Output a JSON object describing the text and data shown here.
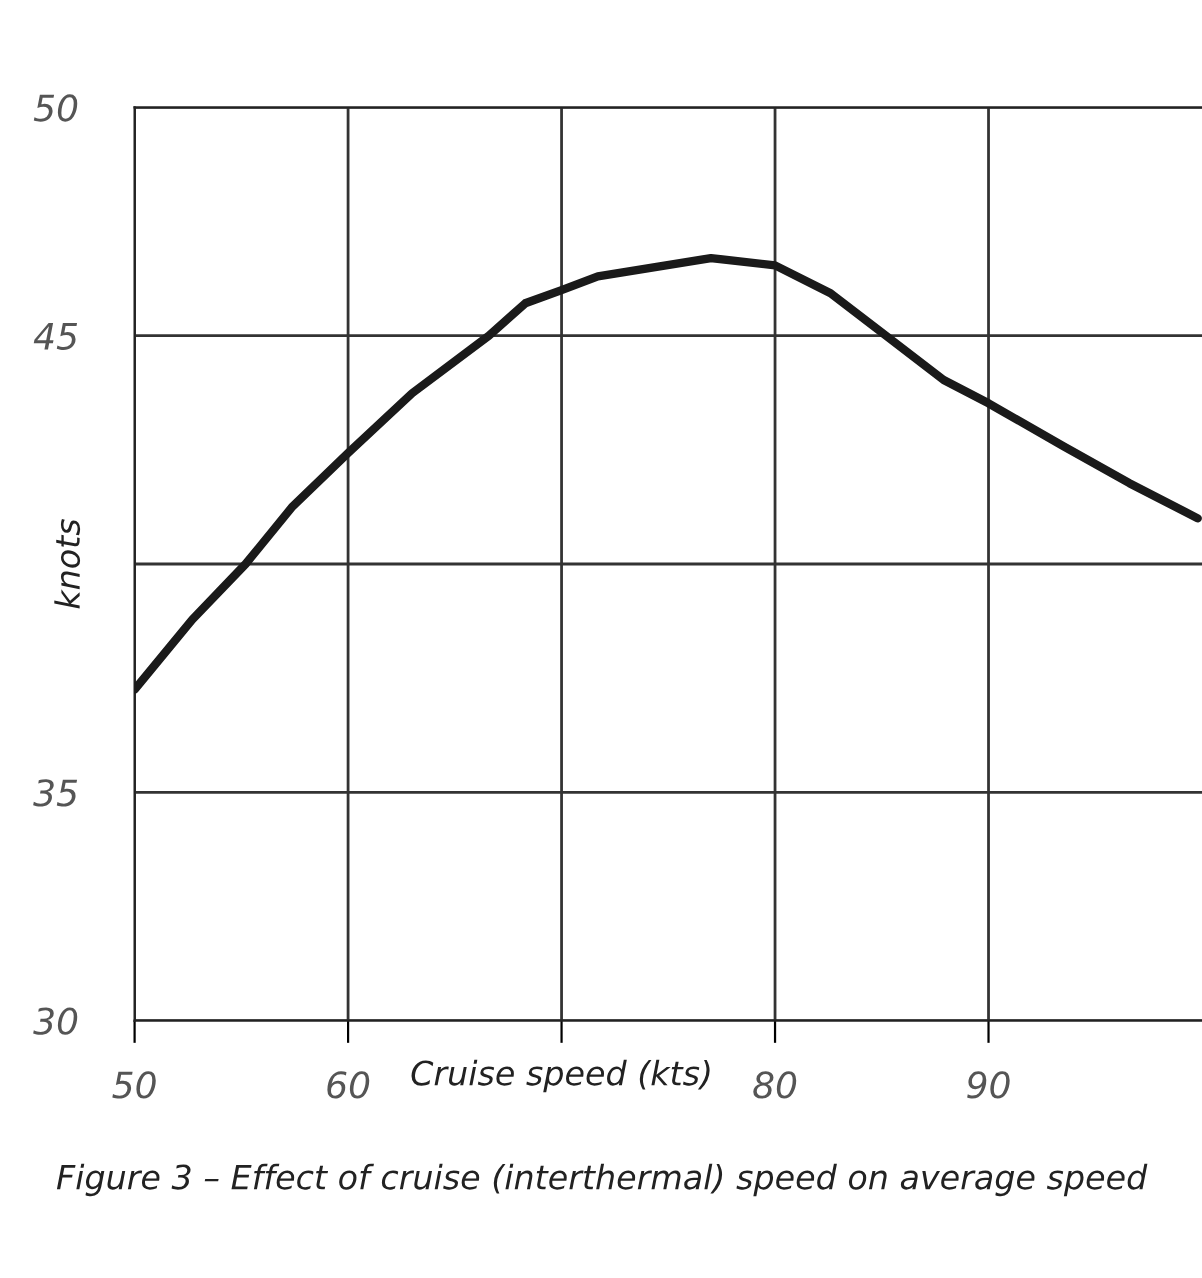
{
  "chart_data": {
    "type": "line",
    "xlabel": "Cruise speed (kts)",
    "ylabel": "knots",
    "annotations": [
      "Figure 3 – Effect of cruise (interthermal) speed on average speed"
    ],
    "x": [
      50,
      52.7,
      55.2,
      57.4,
      60,
      63.0,
      66.6,
      68.3,
      70,
      71.7,
      77.0,
      80,
      82.6,
      85.2,
      87.9,
      90,
      93.5,
      96.6,
      99.8
    ],
    "series": [
      {
        "color": "#1a1a1a",
        "values": [
          37.25,
          38.78,
          40.0,
          41.26,
          42.43,
          43.74,
          45.0,
          45.71,
          46.0,
          46.3,
          46.7,
          46.54,
          45.93,
          45.0,
          44.03,
          43.52,
          42.58,
          41.77,
          41.0
        ]
      }
    ],
    "xlim": [
      50,
      100
    ],
    "ylim": [
      30,
      50
    ],
    "xticks": [
      50,
      60,
      {
        "value": 70,
        "label": null
      },
      80,
      90
    ],
    "yticks": [
      30,
      35,
      {
        "value": 40,
        "label": null
      },
      45,
      50
    ],
    "grid": true,
    "marker": "none",
    "line_style": "solid",
    "legend": false
  }
}
